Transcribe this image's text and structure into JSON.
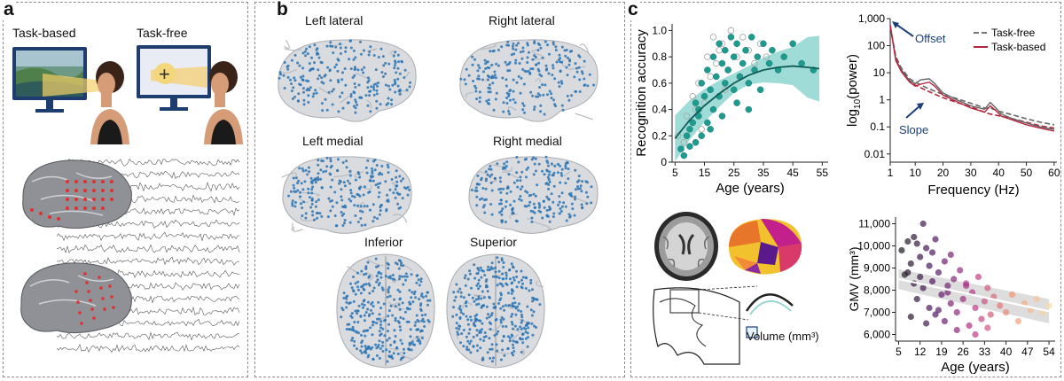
{
  "panel_a": {
    "label": "a",
    "task_based": "Task-based",
    "task_free": "Task-free",
    "fixation_symbol": "+"
  },
  "panel_b": {
    "label": "b",
    "views": [
      "Left lateral",
      "Right lateral",
      "Left medial",
      "Right medial",
      "Inferior",
      "Superior"
    ]
  },
  "panel_c": {
    "label": "c",
    "volume_legend": "Volume (mm³)"
  },
  "colors": {
    "teal": "#1f9a8f",
    "teal_fill": "#7fcfca",
    "task_based_red": "#b3263c",
    "task_free_gray": "#666666",
    "electrode_red": "#e03030",
    "node_blue": "#2a74b5",
    "offset_arrow": "#1c3f7a"
  },
  "chart_data": [
    {
      "type": "scatter",
      "title": "",
      "xlabel": "Age (years)",
      "ylabel": "Recognition accuracy",
      "xlim": [
        4,
        57
      ],
      "ylim": [
        0,
        1.05
      ],
      "x_ticks": [
        5,
        15,
        25,
        35,
        45,
        55
      ],
      "y_ticks": [
        0,
        0.2,
        0.4,
        0.6,
        0.8,
        1.0
      ],
      "y_tick_labels": [
        "0",
        "0.2",
        "0.4",
        "0.6",
        "0.8",
        "1.0"
      ],
      "series": [
        {
          "name": "task-based (filled)",
          "x": [
            7,
            9,
            10,
            11,
            12,
            12,
            13,
            14,
            14,
            15,
            16,
            16,
            17,
            18,
            18,
            19,
            20,
            20,
            21,
            22,
            22,
            23,
            24,
            25,
            25,
            26,
            27,
            28,
            29,
            30,
            31,
            32,
            33,
            35,
            37,
            38,
            40,
            42,
            45,
            48,
            52,
            8,
            13,
            17,
            21,
            26,
            30,
            34,
            10
          ],
          "y": [
            0.1,
            0.2,
            0.25,
            0.3,
            0.15,
            0.45,
            0.35,
            0.6,
            0.2,
            0.5,
            0.3,
            0.7,
            0.55,
            0.4,
            0.8,
            0.65,
            0.5,
            0.9,
            0.75,
            0.6,
            0.85,
            0.7,
            0.95,
            0.8,
            0.55,
            0.9,
            0.65,
            0.75,
            0.85,
            0.6,
            0.95,
            0.7,
            0.8,
            0.9,
            0.75,
            0.85,
            0.7,
            0.8,
            0.9,
            0.75,
            0.7,
            0.05,
            0.4,
            0.25,
            0.35,
            0.45,
            0.4,
            0.55,
            0.12
          ]
        },
        {
          "name": "task-free (open)",
          "x": [
            6,
            8,
            9,
            11,
            12,
            13,
            15,
            16,
            17,
            18,
            19,
            20,
            21,
            23,
            24,
            26,
            28,
            30,
            32,
            34,
            36,
            14,
            22,
            27
          ],
          "y": [
            0.2,
            0.15,
            0.35,
            0.5,
            0.4,
            0.6,
            0.45,
            0.8,
            0.65,
            0.95,
            0.75,
            0.85,
            0.9,
            0.7,
            1.0,
            0.8,
            0.95,
            0.85,
            0.75,
            0.9,
            0.8,
            0.25,
            0.55,
            0.65
          ]
        }
      ],
      "fit_line": {
        "x": [
          5,
          10,
          15,
          20,
          25,
          30,
          35,
          40,
          45,
          50,
          54
        ],
        "y": [
          0.18,
          0.32,
          0.43,
          0.52,
          0.6,
          0.66,
          0.7,
          0.72,
          0.73,
          0.72,
          0.71
        ]
      }
    },
    {
      "type": "line",
      "title": "",
      "xlabel": "Frequency (Hz)",
      "ylabel": "log10(power)",
      "ylabel_main": "log",
      "ylabel_sub": "10",
      "ylabel_rest": "(power)",
      "x_scale": "linear",
      "y_scale": "log",
      "xlim": [
        1,
        61
      ],
      "ylim": [
        0.005,
        1000
      ],
      "x_ticks": [
        1,
        10,
        20,
        30,
        40,
        50,
        60
      ],
      "y_ticks": [
        0.01,
        0.1,
        1,
        10,
        100,
        1000
      ],
      "y_tick_labels": [
        "0.01",
        "0.1",
        "1",
        "10",
        "100",
        "1,000"
      ],
      "legend": [
        "Task-free",
        "Task-based"
      ],
      "legend_position": "top-right",
      "annotations": [
        "Offset",
        "Slope"
      ],
      "series": [
        {
          "name": "Task-free",
          "style": "dashed",
          "x": [
            1,
            3,
            5,
            8,
            10,
            15,
            20,
            25,
            30,
            35,
            37,
            40,
            45,
            50,
            55,
            60
          ],
          "y": [
            500,
            40,
            15,
            6,
            4.5,
            2.5,
            1.6,
            1.1,
            0.75,
            0.5,
            0.5,
            0.38,
            0.28,
            0.2,
            0.15,
            0.12
          ]
        },
        {
          "name": "Task-based",
          "style": "solid",
          "x": [
            1,
            3,
            5,
            8,
            10,
            15,
            20,
            25,
            30,
            35,
            37,
            40,
            45,
            50,
            55,
            60
          ],
          "y": [
            520,
            35,
            12,
            5,
            3.5,
            2,
            1.2,
            0.8,
            0.55,
            0.35,
            0.3,
            0.26,
            0.2,
            0.15,
            0.11,
            0.09
          ]
        },
        {
          "name": "Task-free raw",
          "style": "thin",
          "x": [
            1,
            3,
            5,
            8,
            10,
            12,
            15,
            17,
            20,
            25,
            30,
            35,
            37,
            39,
            41,
            45,
            50,
            55,
            60
          ],
          "y": [
            600,
            30,
            13,
            5,
            4,
            5.5,
            6,
            4,
            1.8,
            1,
            0.6,
            0.45,
            0.8,
            0.5,
            0.3,
            0.2,
            0.14,
            0.1,
            0.08
          ]
        },
        {
          "name": "Task-based raw",
          "style": "thin",
          "x": [
            1,
            3,
            5,
            8,
            10,
            12,
            15,
            17,
            20,
            25,
            30,
            35,
            37,
            39,
            41,
            45,
            50,
            55,
            60
          ],
          "y": [
            580,
            28,
            11,
            4.5,
            3.2,
            3.8,
            4.5,
            3.2,
            1.5,
            0.85,
            0.5,
            0.35,
            0.6,
            0.4,
            0.25,
            0.18,
            0.12,
            0.09,
            0.07
          ]
        }
      ]
    },
    {
      "type": "scatter",
      "title": "",
      "xlabel": "Age (years)",
      "ylabel": "GMV (mm³)",
      "xlim": [
        4,
        56
      ],
      "ylim": [
        5700,
        11300
      ],
      "x_ticks": [
        5,
        12,
        19,
        26,
        33,
        40,
        47,
        54
      ],
      "y_ticks": [
        6000,
        7000,
        8000,
        9000,
        10000,
        11000
      ],
      "y_tick_labels": [
        "6,000",
        "7,000",
        "8,000",
        "9,000",
        "10,000",
        "11,000"
      ],
      "points": {
        "x": [
          6,
          7,
          8,
          9,
          10,
          10,
          11,
          12,
          12,
          13,
          13,
          14,
          15,
          15,
          16,
          17,
          17,
          18,
          19,
          20,
          20,
          21,
          22,
          22,
          23,
          24,
          25,
          26,
          27,
          28,
          29,
          30,
          31,
          32,
          33,
          34,
          35,
          36,
          38,
          40,
          42,
          44,
          46,
          48,
          50,
          52,
          54,
          9,
          14,
          18,
          24,
          30,
          11,
          16,
          21,
          27,
          34,
          8
        ],
        "y": [
          9800,
          8700,
          10200,
          9200,
          8300,
          10400,
          7600,
          9500,
          8600,
          11000,
          8100,
          9900,
          7200,
          9100,
          8400,
          10300,
          6900,
          8800,
          7800,
          9300,
          6600,
          8200,
          9600,
          7400,
          8500,
          7000,
          8900,
          7600,
          8300,
          6400,
          7900,
          7200,
          8600,
          6700,
          7500,
          8100,
          6900,
          7700,
          7300,
          7000,
          7800,
          6600,
          7400,
          7100,
          7600,
          7000,
          7300,
          6800,
          6500,
          7100,
          6200,
          6000,
          10100,
          9700,
          7900,
          8200,
          6300,
          8800
        ]
      },
      "fit_line": {
        "x": [
          5,
          54
        ],
        "y": [
          8500,
          7050
        ]
      }
    }
  ]
}
